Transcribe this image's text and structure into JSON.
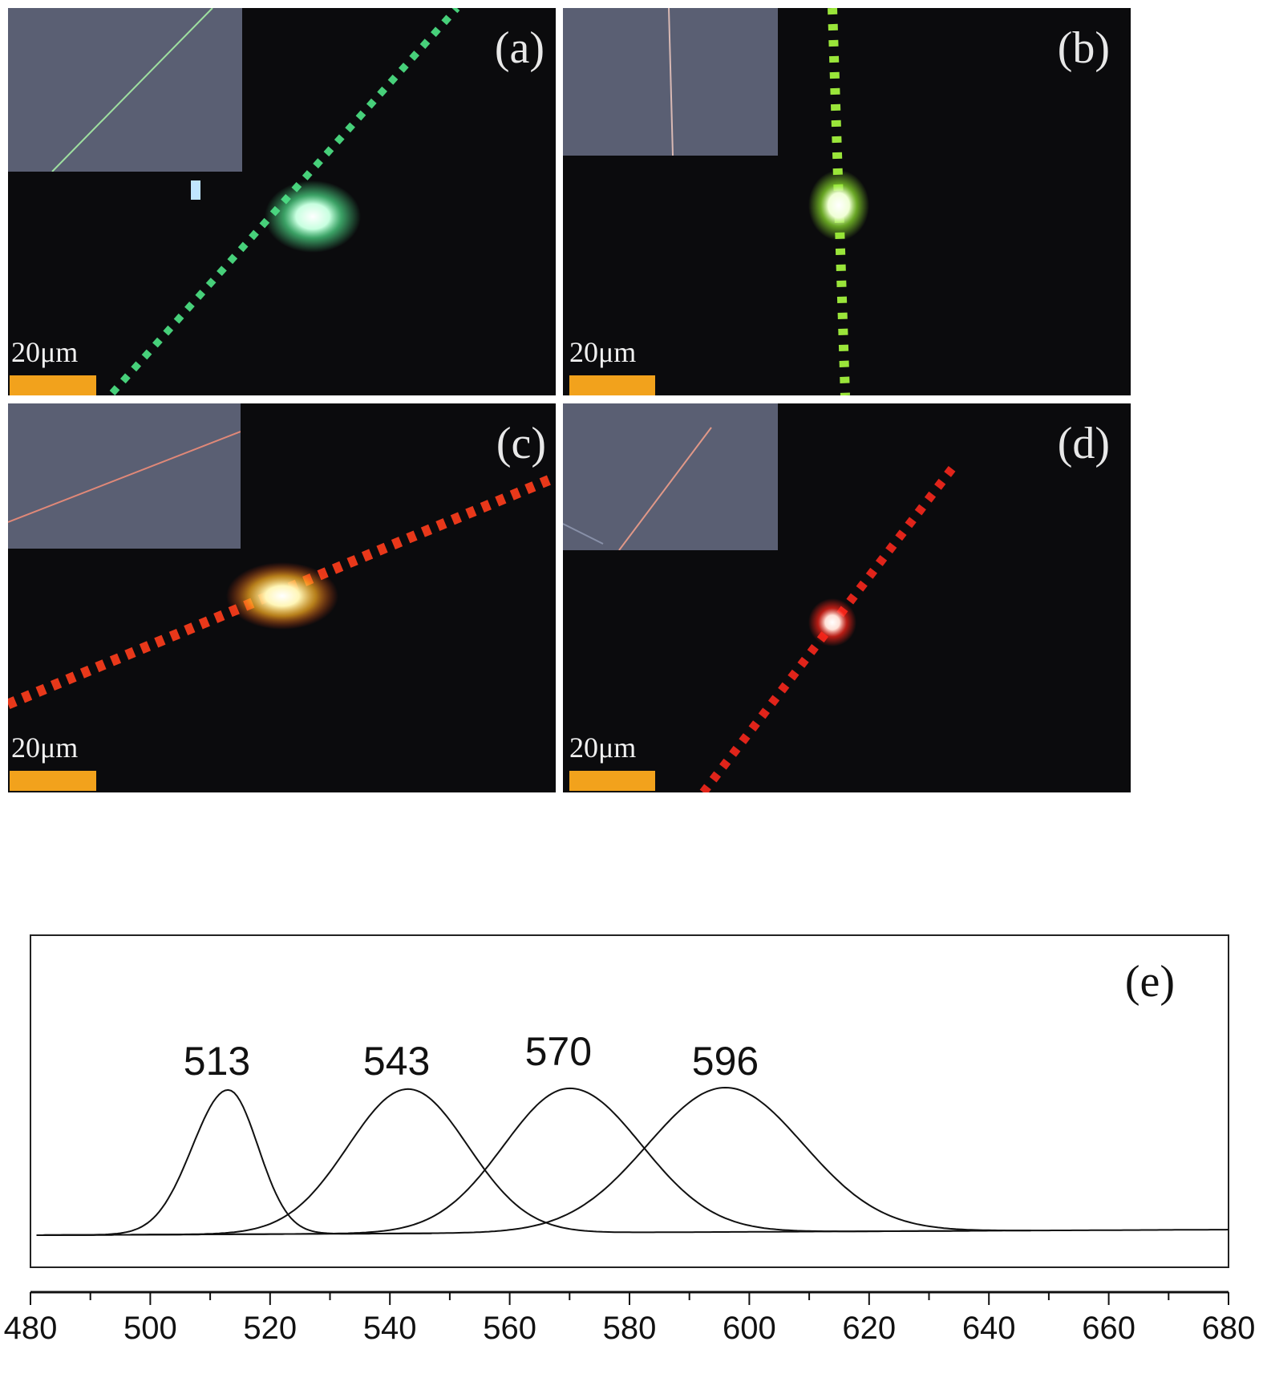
{
  "panels": [
    {
      "label": "(a)",
      "scale_label": "20μm",
      "glow_color": "#4fe08a",
      "core_color": "#e9fff2"
    },
    {
      "label": "(b)",
      "scale_label": "20μm",
      "glow_color": "#8fe62e",
      "core_color": "#f6ffe6"
    },
    {
      "label": "(c)",
      "scale_label": "20μm",
      "glow_color": "#ff3b12",
      "core_color": "#fff6b8"
    },
    {
      "label": "(d)",
      "scale_label": "20μm",
      "glow_color": "#ff2418",
      "core_color": "#ffe2d8"
    }
  ],
  "chart_data": {
    "type": "line",
    "panel_label": "(e)",
    "xlim": [
      480,
      680
    ],
    "x_ticks": [
      480,
      500,
      520,
      540,
      560,
      580,
      600,
      620,
      640,
      660,
      680
    ],
    "grid": false,
    "series": [
      {
        "peak_label": "513",
        "peak": 513,
        "width": 6,
        "right_width": 5,
        "end": 547
      },
      {
        "peak_label": "543",
        "peak": 543,
        "width": 10,
        "right_width": 10,
        "end": 637
      },
      {
        "peak_label": "570",
        "peak": 570,
        "width": 11,
        "right_width": 12,
        "end": 647
      },
      {
        "peak_label": "596",
        "peak": 596,
        "width": 13,
        "right_width": 13,
        "end": 680
      }
    ]
  }
}
